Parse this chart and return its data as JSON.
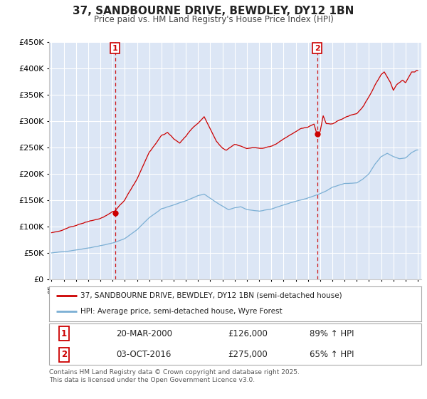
{
  "title": "37, SANDBOURNE DRIVE, BEWDLEY, DY12 1BN",
  "subtitle": "Price paid vs. HM Land Registry's House Price Index (HPI)",
  "fig_bg": "#ffffff",
  "plot_bg": "#dce6f5",
  "grid_color": "#ffffff",
  "red_color": "#cc0000",
  "blue_color": "#7bafd4",
  "vline_color": "#cc0000",
  "ylim": [
    0,
    450000
  ],
  "yticks": [
    0,
    50000,
    100000,
    150000,
    200000,
    250000,
    300000,
    350000,
    400000,
    450000
  ],
  "purchase1_date": "20-MAR-2000",
  "purchase1_price": 126000,
  "purchase1_hpi_pct": "89%",
  "purchase1_year": 2000.2,
  "purchase2_date": "03-OCT-2016",
  "purchase2_price": 275000,
  "purchase2_hpi_pct": "65%",
  "purchase2_year": 2016.75,
  "legend1": "37, SANDBOURNE DRIVE, BEWDLEY, DY12 1BN (semi-detached house)",
  "legend2": "HPI: Average price, semi-detached house, Wyre Forest",
  "footnote1": "Contains HM Land Registry data © Crown copyright and database right 2025.",
  "footnote2": "This data is licensed under the Open Government Licence v3.0.",
  "xmin": 1994.8,
  "xmax": 2025.3
}
